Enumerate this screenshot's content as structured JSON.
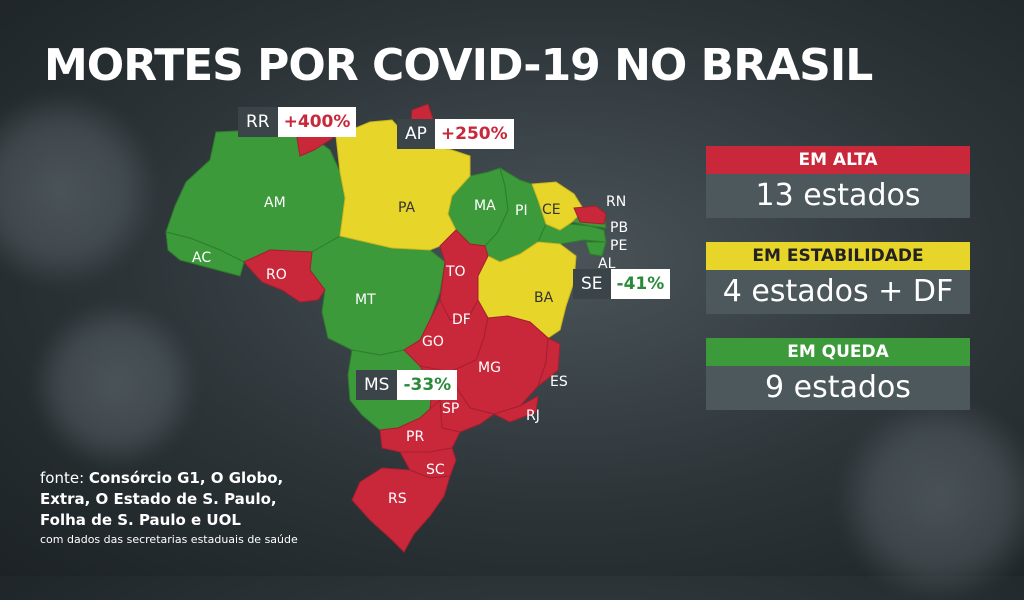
{
  "title": "MORTES POR COVID-19 NO BRASIL",
  "colors": {
    "alta": "#c8283a",
    "estabilidade": "#e8d52a",
    "queda": "#3c9a3a"
  },
  "map": {
    "states": {
      "AM": "AM",
      "AC": "AC",
      "RO": "RO",
      "MT": "MT",
      "PA": "PA",
      "MA": "MA",
      "PI": "PI",
      "CE": "CE",
      "RN": "RN",
      "PB": "PB",
      "PE": "PE",
      "AL": "AL",
      "TO": "TO",
      "BA": "BA",
      "DF": "DF",
      "GO": "GO",
      "MG": "MG",
      "ES": "ES",
      "SP": "SP",
      "RJ": "RJ",
      "PR": "PR",
      "SC": "SC",
      "RS": "RS"
    },
    "callouts": {
      "rr": {
        "abbr": "RR",
        "pct": "+400%"
      },
      "ap": {
        "abbr": "AP",
        "pct": "+250%"
      },
      "se": {
        "abbr": "SE",
        "pct": "-41%"
      },
      "ms": {
        "abbr": "MS",
        "pct": "-33%"
      }
    }
  },
  "legend": {
    "alta": {
      "label": "EM ALTA",
      "value": "13 estados"
    },
    "estabilidade": {
      "label": "EM ESTABILIDADE",
      "value": "4 estados + DF"
    },
    "queda": {
      "label": "EM QUEDA",
      "value": "9 estados"
    }
  },
  "source": {
    "prefix": "fonte:",
    "line1": "Consórcio G1, O Globo,",
    "line2": "Extra, O Estado de S. Paulo,",
    "line3": "Folha de S. Paulo e UOL",
    "note": "com dados das secretarias estaduais de saúde"
  }
}
